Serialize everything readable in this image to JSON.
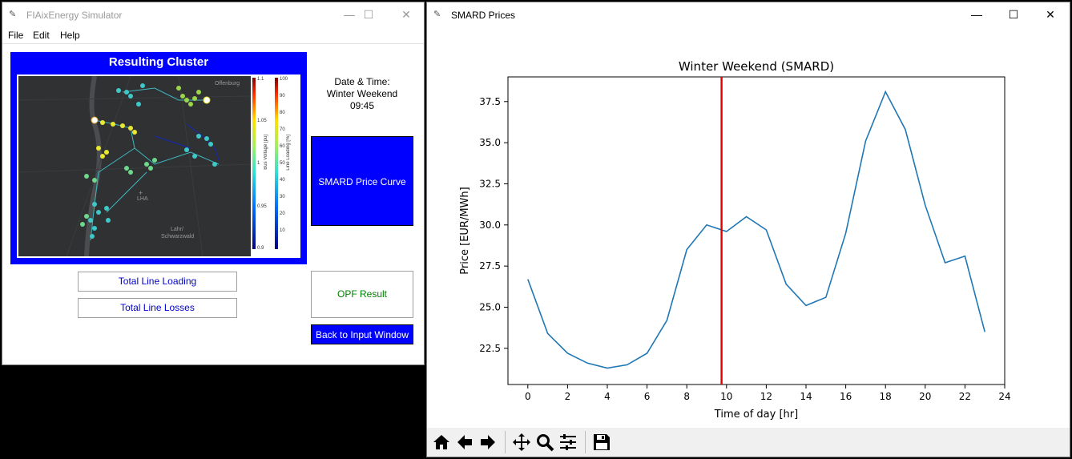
{
  "win1": {
    "title": "FIAixEnergy Simulator",
    "menu": [
      "File",
      "Edit",
      "Help"
    ],
    "cluster_title": "Resulting Cluster",
    "map": {
      "city_top": "Offenburg",
      "airport": "LHA",
      "city_bottom_line1": "Lahr/",
      "city_bottom_line2": "Schwarzwald",
      "voltage_label": "Bus Voltage [pu]",
      "voltage_ticks": [
        "1.1",
        "1.05",
        "1",
        "0.95",
        "0.9"
      ],
      "loading_label": "Line Loading [%]",
      "loading_ticks": [
        "100",
        "90",
        "80",
        "70",
        "60",
        "50",
        "40",
        "30",
        "20",
        "10"
      ]
    },
    "datetime_label": "Date & Time:",
    "datetime_value": "Winter Weekend",
    "datetime_time": "09:45",
    "smard_button": "SMARD Price Curve",
    "opf_button": "OPF Result",
    "back_button": "Back to Input Window",
    "total_loading_button": "Total Line Loading",
    "total_losses_button": "Total Line Losses",
    "colors": {
      "accent": "#0000ff",
      "opf_text": "#008000",
      "link_text": "#0000cc"
    }
  },
  "win2": {
    "title": "SMARD Prices",
    "toolbar": [
      "home-icon",
      "back-arrow-icon",
      "forward-arrow-icon",
      "pan-icon",
      "zoom-icon",
      "configure-icon",
      "save-icon"
    ]
  },
  "chart_data": {
    "type": "line",
    "title": "Winter Weekend (SMARD)",
    "xlabel": "Time of day [hr]",
    "ylabel": "Price [EUR/MWh]",
    "xlim": [
      -1,
      24
    ],
    "ylim": [
      20.3,
      39.0
    ],
    "xticks": [
      0,
      2,
      4,
      6,
      8,
      10,
      12,
      14,
      16,
      18,
      20,
      22,
      24
    ],
    "yticks": [
      22.5,
      25.0,
      27.5,
      30.0,
      32.5,
      35.0,
      37.5
    ],
    "ytick_labels": [
      "22.5",
      "25.0",
      "27.5",
      "30.0",
      "32.5",
      "35.0",
      "37.5"
    ],
    "x": [
      0,
      1,
      2,
      3,
      4,
      5,
      6,
      7,
      8,
      9,
      10,
      11,
      12,
      13,
      14,
      15,
      16,
      17,
      18,
      19,
      20,
      21,
      22,
      23
    ],
    "series": [
      {
        "name": "price",
        "color": "#1f77b4",
        "values": [
          26.7,
          23.4,
          22.2,
          21.6,
          21.3,
          21.5,
          22.2,
          24.2,
          28.5,
          30.0,
          29.6,
          30.5,
          29.7,
          26.4,
          25.1,
          25.6,
          29.5,
          35.1,
          38.1,
          35.8,
          31.2,
          27.7,
          28.1,
          23.5
        ]
      }
    ],
    "vline": {
      "x": 9.75,
      "color": "#e00000"
    }
  }
}
